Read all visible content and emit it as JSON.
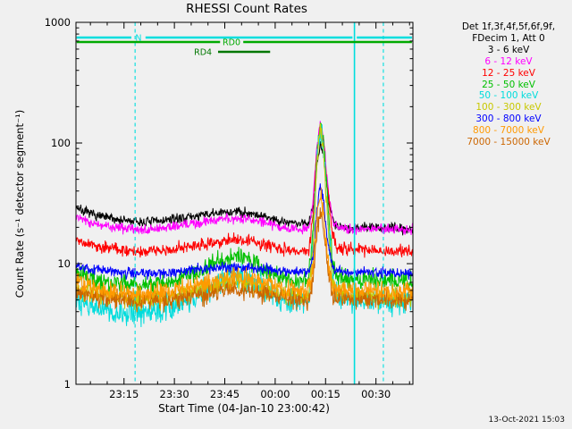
{
  "chart_data": {
    "type": "line",
    "title": "RHESSI Count Rates",
    "xlabel": "Start Time (04-Jan-10 23:00:42)",
    "ylabel": "Count Rate (s⁻¹ detector segment⁻¹)",
    "x_axis": {
      "t_start_min": 0.7,
      "t_end_min": 101,
      "tick_t": [
        15,
        30,
        45,
        60,
        75,
        90
      ],
      "tick_labels": [
        "23:15",
        "23:30",
        "23:45",
        "00:00",
        "00:15",
        "00:30"
      ],
      "minor_step_min": 5
    },
    "y_axis": {
      "scale": "log",
      "lim": [
        1,
        1000
      ],
      "tick_values": [
        1,
        10,
        100,
        1000
      ],
      "tick_labels": [
        "1",
        "10",
        "100",
        "1000"
      ]
    },
    "samples": 760,
    "draw_order": [
      0,
      1,
      2,
      3,
      4,
      5,
      8,
      6,
      7
    ],
    "series": [
      {
        "name": "3 - 6 keV",
        "color": "#000000",
        "noise": 0.02,
        "points": [
          [
            0.7,
            30
          ],
          [
            3,
            27
          ],
          [
            8,
            24.5
          ],
          [
            14,
            23
          ],
          [
            20,
            22
          ],
          [
            27,
            22.8
          ],
          [
            35,
            24.5
          ],
          [
            42,
            26
          ],
          [
            48,
            27
          ],
          [
            52,
            26.5
          ],
          [
            57,
            24.5
          ],
          [
            62,
            22.5
          ],
          [
            67,
            21.5
          ],
          [
            70,
            21.8
          ],
          [
            71.3,
            30
          ],
          [
            72.3,
            62
          ],
          [
            73.4,
            101
          ],
          [
            74.4,
            78
          ],
          [
            75.6,
            38
          ],
          [
            77,
            24
          ],
          [
            78.5,
            20.5
          ],
          [
            82,
            19.8
          ],
          [
            88,
            20
          ],
          [
            94,
            19.6
          ],
          [
            101,
            19.5
          ]
        ]
      },
      {
        "name": "6 - 12 keV",
        "color": "#ff00ff",
        "noise": 0.02,
        "points": [
          [
            0.7,
            24.5
          ],
          [
            3,
            22.5
          ],
          [
            8,
            21
          ],
          [
            14,
            19.8
          ],
          [
            20,
            19
          ],
          [
            27,
            19.6
          ],
          [
            35,
            21.5
          ],
          [
            42,
            23
          ],
          [
            48,
            24
          ],
          [
            52,
            23.6
          ],
          [
            57,
            22
          ],
          [
            62,
            20
          ],
          [
            67,
            19
          ],
          [
            70,
            19.5
          ],
          [
            71.3,
            34
          ],
          [
            72.3,
            90
          ],
          [
            73.4,
            148
          ],
          [
            74.4,
            112
          ],
          [
            75.6,
            46
          ],
          [
            77,
            24
          ],
          [
            78.5,
            20
          ],
          [
            82,
            19.4
          ],
          [
            88,
            19.6
          ],
          [
            94,
            19.2
          ],
          [
            101,
            19.2
          ]
        ]
      },
      {
        "name": "12 - 25 keV",
        "color": "#ff0000",
        "noise": 0.025,
        "points": [
          [
            0.7,
            16.5
          ],
          [
            3,
            15
          ],
          [
            8,
            13.8
          ],
          [
            14,
            13
          ],
          [
            20,
            12.5
          ],
          [
            27,
            12.9
          ],
          [
            35,
            14
          ],
          [
            42,
            15
          ],
          [
            48,
            15.7
          ],
          [
            52,
            15.4
          ],
          [
            57,
            14.3
          ],
          [
            62,
            13.2
          ],
          [
            67,
            12.6
          ],
          [
            70,
            13
          ],
          [
            71.3,
            26
          ],
          [
            72.3,
            75
          ],
          [
            73.4,
            140
          ],
          [
            74.4,
            100
          ],
          [
            75.6,
            40
          ],
          [
            77,
            18
          ],
          [
            78.5,
            13.5
          ],
          [
            82,
            13
          ],
          [
            88,
            13
          ],
          [
            94,
            12.8
          ],
          [
            101,
            12.7
          ]
        ]
      },
      {
        "name": "25 - 50 keV",
        "color": "#00c000",
        "noise": 0.04,
        "points": [
          [
            0.7,
            8.8
          ],
          [
            3,
            8
          ],
          [
            8,
            7.2
          ],
          [
            14,
            6.8
          ],
          [
            20,
            6.5
          ],
          [
            27,
            6.9
          ],
          [
            35,
            8.2
          ],
          [
            42,
            10
          ],
          [
            48,
            11.6
          ],
          [
            52,
            11
          ],
          [
            57,
            9
          ],
          [
            62,
            7.6
          ],
          [
            67,
            7.1
          ],
          [
            70,
            7.4
          ],
          [
            71.3,
            20
          ],
          [
            72.3,
            70
          ],
          [
            73.4,
            151
          ],
          [
            74.4,
            105
          ],
          [
            75.6,
            35
          ],
          [
            77,
            11
          ],
          [
            78.5,
            7.8
          ],
          [
            82,
            7.4
          ],
          [
            88,
            7.5
          ],
          [
            94,
            7.2
          ],
          [
            101,
            7.2
          ]
        ]
      },
      {
        "name": "50 - 100 keV",
        "color": "#00dcdc",
        "noise": 0.055,
        "points": [
          [
            0.7,
            5.2
          ],
          [
            3,
            4.6
          ],
          [
            8,
            4.1
          ],
          [
            14,
            3.9
          ],
          [
            20,
            3.8
          ],
          [
            27,
            4.1
          ],
          [
            35,
            5.2
          ],
          [
            42,
            6.6
          ],
          [
            48,
            7.9
          ],
          [
            52,
            7.4
          ],
          [
            57,
            6
          ],
          [
            62,
            4.9
          ],
          [
            67,
            4.5
          ],
          [
            70,
            4.8
          ],
          [
            71.3,
            16
          ],
          [
            72.3,
            65
          ],
          [
            73.4,
            140
          ],
          [
            74.4,
            90
          ],
          [
            75.6,
            25
          ],
          [
            77,
            7.5
          ],
          [
            78.5,
            5.2
          ],
          [
            82,
            4.9
          ],
          [
            88,
            5
          ],
          [
            94,
            4.8
          ],
          [
            101,
            4.8
          ]
        ]
      },
      {
        "name": "100 - 300 keV",
        "color": "#c8c800",
        "noise": 0.04,
        "points": [
          [
            0.7,
            6.4
          ],
          [
            3,
            6
          ],
          [
            8,
            5.5
          ],
          [
            14,
            5.2
          ],
          [
            20,
            5
          ],
          [
            27,
            5.2
          ],
          [
            35,
            5.9
          ],
          [
            42,
            6.6
          ],
          [
            48,
            7.2
          ],
          [
            52,
            7
          ],
          [
            57,
            6.3
          ],
          [
            62,
            5.6
          ],
          [
            67,
            5.3
          ],
          [
            70,
            5.5
          ],
          [
            71.3,
            15
          ],
          [
            72.3,
            60
          ],
          [
            73.4,
            133
          ],
          [
            74.4,
            85
          ],
          [
            75.6,
            24
          ],
          [
            77,
            7.5
          ],
          [
            78.5,
            5.7
          ],
          [
            82,
            5.4
          ],
          [
            88,
            5.5
          ],
          [
            94,
            5.3
          ],
          [
            101,
            5.3
          ]
        ]
      },
      {
        "name": "300 - 800 keV",
        "color": "#0000ff",
        "noise": 0.022,
        "points": [
          [
            0.7,
            9.6
          ],
          [
            3,
            9.2
          ],
          [
            8,
            8.8
          ],
          [
            14,
            8.5
          ],
          [
            20,
            8.2
          ],
          [
            27,
            8.4
          ],
          [
            35,
            8.8
          ],
          [
            42,
            9.2
          ],
          [
            48,
            9.4
          ],
          [
            52,
            9.3
          ],
          [
            57,
            9
          ],
          [
            62,
            8.6
          ],
          [
            67,
            8.4
          ],
          [
            70,
            8.5
          ],
          [
            71.3,
            11
          ],
          [
            72.3,
            26
          ],
          [
            73.4,
            47
          ],
          [
            74.4,
            33
          ],
          [
            75.6,
            15
          ],
          [
            77,
            9.5
          ],
          [
            78.5,
            8.6
          ],
          [
            82,
            8.5
          ],
          [
            88,
            8.5
          ],
          [
            94,
            8.4
          ],
          [
            101,
            8.3
          ]
        ]
      },
      {
        "name": "800 - 7000 keV",
        "color": "#ff9900",
        "noise": 0.04,
        "points": [
          [
            0.7,
            7
          ],
          [
            3,
            6.6
          ],
          [
            8,
            6.1
          ],
          [
            14,
            5.8
          ],
          [
            20,
            5.6
          ],
          [
            27,
            5.8
          ],
          [
            35,
            6.5
          ],
          [
            42,
            7.2
          ],
          [
            48,
            7.6
          ],
          [
            52,
            7.4
          ],
          [
            57,
            6.8
          ],
          [
            62,
            6.2
          ],
          [
            67,
            5.9
          ],
          [
            70,
            6
          ],
          [
            71.3,
            9.5
          ],
          [
            72.3,
            22
          ],
          [
            73.4,
            39
          ],
          [
            74.4,
            27
          ],
          [
            75.6,
            11
          ],
          [
            77,
            6.8
          ],
          [
            78.5,
            6.1
          ],
          [
            82,
            6
          ],
          [
            88,
            6
          ],
          [
            94,
            5.9
          ],
          [
            101,
            5.9
          ]
        ]
      },
      {
        "name": "7000 - 15000 keV",
        "color": "#cc6600",
        "noise": 0.04,
        "points": [
          [
            0.7,
            5.9
          ],
          [
            3,
            5.6
          ],
          [
            8,
            5.2
          ],
          [
            14,
            5
          ],
          [
            20,
            4.9
          ],
          [
            27,
            5
          ],
          [
            35,
            5.4
          ],
          [
            42,
            5.8
          ],
          [
            48,
            6.1
          ],
          [
            52,
            6
          ],
          [
            57,
            5.6
          ],
          [
            62,
            5.2
          ],
          [
            67,
            5
          ],
          [
            70,
            5.1
          ],
          [
            71.3,
            7.5
          ],
          [
            72.3,
            16
          ],
          [
            73.4,
            29
          ],
          [
            74.4,
            20
          ],
          [
            75.6,
            9
          ],
          [
            77,
            5.7
          ],
          [
            78.5,
            5.2
          ],
          [
            82,
            5.1
          ],
          [
            88,
            5.1
          ],
          [
            94,
            5
          ],
          [
            101,
            5
          ]
        ]
      }
    ],
    "flags": [
      {
        "label": "N",
        "color": "#00dede",
        "y": 42,
        "label_t": 19.3,
        "width": 2.4,
        "segments": [
          [
            0.9,
            17.2
          ],
          [
            21.4,
            83.0
          ],
          [
            84.3,
            100.7
          ]
        ]
      },
      {
        "label": "RD0",
        "color": "#00aa00",
        "y": 47,
        "label_t": 47,
        "width": 2.4,
        "segments": [
          [
            0.9,
            43.6
          ],
          [
            50.5,
            100.7
          ]
        ]
      },
      {
        "label": "RD4",
        "color": "#007700",
        "y": 58,
        "label_t": 38.5,
        "width": 2.4,
        "segments": [
          [
            43,
            58.5
          ]
        ]
      }
    ],
    "event_lines": [
      {
        "t": 18.3,
        "style": "dashed",
        "color": "#00dede"
      },
      {
        "t": 83.6,
        "style": "solid",
        "color": "#00dede"
      },
      {
        "t": 92.2,
        "style": "dashed",
        "color": "#00dede"
      }
    ]
  },
  "legend": {
    "line1": "Det 1f,3f,4f,5f,6f,9f,",
    "line2": "FDecim 1, Att 0"
  },
  "footer": {
    "timestamp": "13-Oct-2021 15:03"
  }
}
